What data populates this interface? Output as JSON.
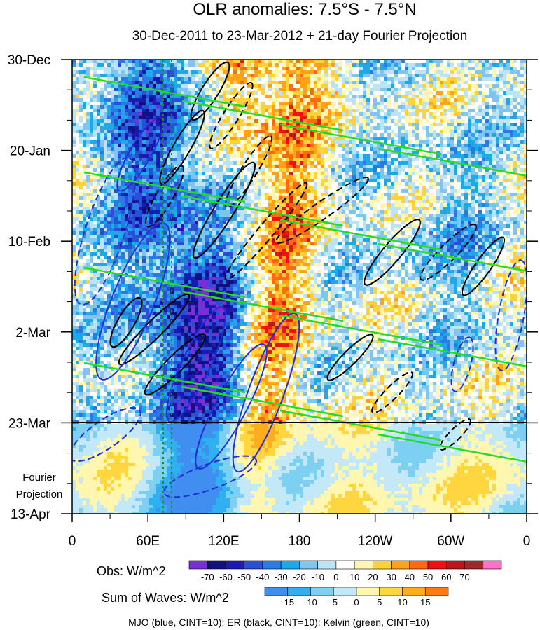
{
  "chart_data": {
    "type": "heatmap",
    "title": "OLR anomalies: 7.5°S - 7.5°N",
    "subtitle": "30-Dec-2011 to 23-Mar-2012 + 21-day Fourier Projection",
    "xlabel": "",
    "ylabel": "",
    "x_ticks": [
      "0",
      "60E",
      "120E",
      "180",
      "120W",
      "60W",
      "0"
    ],
    "x_tick_values_deg": [
      0,
      60,
      120,
      180,
      240,
      300,
      360
    ],
    "y_ticks": [
      "30-Dec",
      "20-Jan",
      "10-Feb",
      "2-Mar",
      "23-Mar",
      "13-Apr"
    ],
    "y_tick_day_offsets": [
      0,
      21,
      42,
      63,
      84,
      105
    ],
    "xlim_deg": [
      0,
      360
    ],
    "ylim_days": [
      0,
      105
    ],
    "observation_end": "23-Mar",
    "projection_label_line1": "Fourier",
    "projection_label_line2": "Projection",
    "obs_colorbar": {
      "label": "Obs: W/m^2",
      "ticks": [
        "-70",
        "-60",
        "-50",
        "-40",
        "-30",
        "-20",
        "-10",
        "0",
        "10",
        "20",
        "30",
        "40",
        "50",
        "60",
        "70"
      ],
      "colors": [
        "#7a2fd6",
        "#10107f",
        "#1a1ab3",
        "#2a4fd6",
        "#2a7ae6",
        "#1fa8e8",
        "#7ec6f0",
        "#bde3f7",
        "#ffffff",
        "#fff7b0",
        "#ffd23a",
        "#ffa21a",
        "#ff6a10",
        "#f01010",
        "#b81818",
        "#9b2a2a",
        "#ff70c8"
      ]
    },
    "waves_colorbar": {
      "label": "Sum of Waves: W/m^2",
      "ticks": [
        "-15",
        "-10",
        "-5",
        "0",
        "5",
        "10",
        "15"
      ],
      "colors": [
        "#3f8ef0",
        "#2fb0f0",
        "#7ed0f2",
        "#c3e9f8",
        "#fff6b0",
        "#ffd640",
        "#ffac20",
        "#ff7a10"
      ]
    },
    "contours": [
      {
        "name": "MJO",
        "color": "blue"
      },
      {
        "name": "ER",
        "color": "black"
      },
      {
        "name": "Kelvin",
        "color": "green"
      }
    ],
    "footnote": "MJO (blue, CINT=10); ER (black, CINT=10); Kelvin (green, CINT=10)"
  }
}
